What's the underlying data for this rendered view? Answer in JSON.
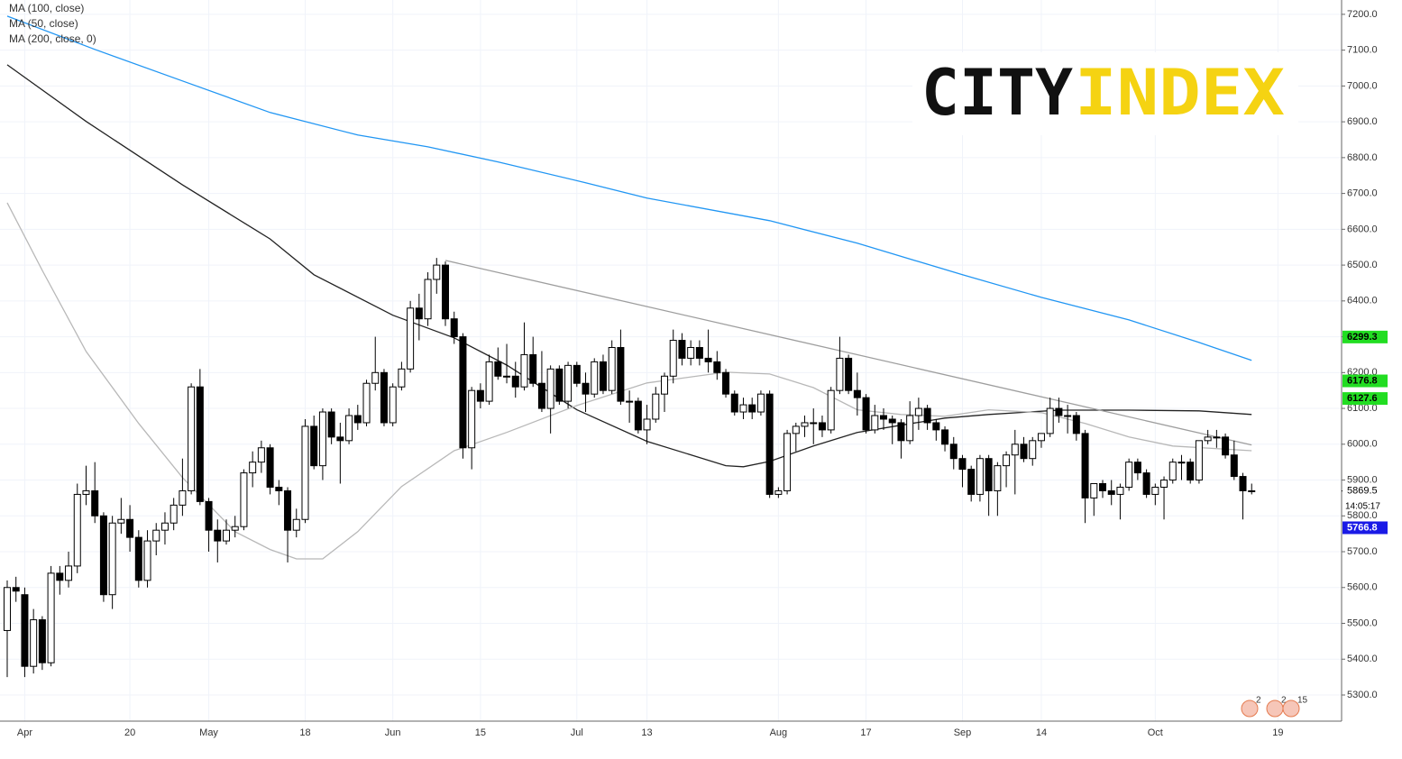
{
  "chart_data": {
    "type": "candlestick",
    "categories": [
      null,
      null,
      "Apr",
      null,
      null,
      null,
      null,
      null,
      null,
      null,
      null,
      null,
      null,
      null,
      "20",
      null,
      null,
      null,
      null,
      null,
      null,
      null,
      null,
      "May",
      null,
      null,
      null,
      null,
      null,
      null,
      null,
      null,
      null,
      null,
      "18",
      null,
      null,
      null,
      null,
      null,
      null,
      null,
      null,
      null,
      "Jun",
      null,
      null,
      null,
      null,
      null,
      null,
      null,
      null,
      null,
      "15",
      null,
      null,
      null,
      null,
      null,
      null,
      null,
      null,
      null,
      null,
      "Jul",
      null,
      null,
      null,
      null,
      null,
      null,
      null,
      "13",
      null,
      null,
      null,
      null,
      null,
      null,
      null,
      null,
      null,
      null,
      null,
      null,
      null,
      null,
      "Aug",
      null,
      null,
      null,
      null,
      null,
      null,
      null,
      null,
      null,
      "17",
      null,
      null,
      null,
      null,
      null,
      null,
      null,
      null,
      null,
      null,
      "Sep",
      null,
      null,
      null,
      null,
      null,
      null,
      null,
      null,
      "14",
      null,
      null,
      null,
      null,
      null,
      null,
      null,
      null,
      null,
      null,
      null,
      null,
      "Oct",
      null,
      null,
      null,
      null,
      null,
      null,
      null,
      null,
      null,
      null,
      null,
      null,
      null,
      "19",
      null,
      null,
      null,
      null,
      null,
      null
    ],
    "candles": [
      [
        5480,
        5620,
        5350,
        5600
      ],
      [
        5600,
        5630,
        5560,
        5590
      ],
      [
        5580,
        5600,
        5350,
        5380
      ],
      [
        5380,
        5540,
        5360,
        5510
      ],
      [
        5510,
        5520,
        5370,
        5390
      ],
      [
        5390,
        5660,
        5380,
        5640
      ],
      [
        5640,
        5660,
        5580,
        5620
      ],
      [
        5620,
        5700,
        5600,
        5660
      ],
      [
        5660,
        5890,
        5640,
        5860
      ],
      [
        5860,
        5940,
        5830,
        5870
      ],
      [
        5870,
        5950,
        5780,
        5800
      ],
      [
        5800,
        5810,
        5560,
        5580
      ],
      [
        5580,
        5800,
        5540,
        5780
      ],
      [
        5780,
        5850,
        5750,
        5790
      ],
      [
        5790,
        5830,
        5700,
        5740
      ],
      [
        5740,
        5760,
        5600,
        5620
      ],
      [
        5620,
        5760,
        5600,
        5730
      ],
      [
        5730,
        5780,
        5690,
        5760
      ],
      [
        5760,
        5810,
        5720,
        5780
      ],
      [
        5780,
        5850,
        5760,
        5830
      ],
      [
        5830,
        5960,
        5800,
        5870
      ],
      [
        5870,
        6170,
        5860,
        6160
      ],
      [
        6160,
        6210,
        5830,
        5840
      ],
      [
        5840,
        5850,
        5700,
        5760
      ],
      [
        5760,
        5790,
        5670,
        5730
      ],
      [
        5730,
        5790,
        5720,
        5760
      ],
      [
        5760,
        5800,
        5740,
        5770
      ],
      [
        5770,
        5930,
        5760,
        5920
      ],
      [
        5920,
        5980,
        5880,
        5950
      ],
      [
        5950,
        6010,
        5920,
        5990
      ],
      [
        5990,
        6000,
        5860,
        5880
      ],
      [
        5880,
        5900,
        5830,
        5870
      ],
      [
        5870,
        5880,
        5670,
        5760
      ],
      [
        5760,
        5820,
        5740,
        5790
      ],
      [
        5790,
        6070,
        5780,
        6050
      ],
      [
        6050,
        6080,
        5930,
        5940
      ],
      [
        5940,
        6100,
        5900,
        6090
      ],
      [
        6090,
        6100,
        6000,
        6020
      ],
      [
        6020,
        6060,
        5890,
        6010
      ],
      [
        6010,
        6100,
        6000,
        6080
      ],
      [
        6080,
        6110,
        6040,
        6060
      ],
      [
        6060,
        6180,
        6050,
        6170
      ],
      [
        6170,
        6300,
        6150,
        6200
      ],
      [
        6200,
        6210,
        6050,
        6060
      ],
      [
        6060,
        6170,
        6050,
        6160
      ],
      [
        6160,
        6230,
        6150,
        6210
      ],
      [
        6210,
        6400,
        6200,
        6380
      ],
      [
        6380,
        6420,
        6290,
        6350
      ],
      [
        6350,
        6480,
        6330,
        6460
      ],
      [
        6460,
        6520,
        6420,
        6500
      ],
      [
        6500,
        6510,
        6330,
        6350
      ],
      [
        6350,
        6370,
        6280,
        6300
      ],
      [
        6300,
        6310,
        5960,
        5990
      ],
      [
        5990,
        6160,
        5930,
        6150
      ],
      [
        6150,
        6170,
        6100,
        6120
      ],
      [
        6120,
        6250,
        6110,
        6230
      ],
      [
        6230,
        6270,
        6180,
        6190
      ],
      [
        6190,
        6280,
        6170,
        6190
      ],
      [
        6190,
        6230,
        6130,
        6160
      ],
      [
        6160,
        6340,
        6150,
        6250
      ],
      [
        6250,
        6300,
        6160,
        6170
      ],
      [
        6170,
        6260,
        6090,
        6100
      ],
      [
        6100,
        6220,
        6030,
        6210
      ],
      [
        6210,
        6220,
        6110,
        6120
      ],
      [
        6120,
        6230,
        6100,
        6220
      ],
      [
        6220,
        6230,
        6160,
        6170
      ],
      [
        6170,
        6200,
        6090,
        6140
      ],
      [
        6140,
        6240,
        6130,
        6230
      ],
      [
        6230,
        6250,
        6140,
        6150
      ],
      [
        6150,
        6290,
        6140,
        6270
      ],
      [
        6270,
        6320,
        6110,
        6120
      ],
      [
        6120,
        6150,
        6060,
        6120
      ],
      [
        6120,
        6130,
        6030,
        6040
      ],
      [
        6040,
        6110,
        6000,
        6070
      ],
      [
        6070,
        6160,
        6060,
        6140
      ],
      [
        6140,
        6200,
        6090,
        6190
      ],
      [
        6190,
        6320,
        6170,
        6290
      ],
      [
        6290,
        6310,
        6220,
        6240
      ],
      [
        6240,
        6290,
        6220,
        6270
      ],
      [
        6270,
        6290,
        6220,
        6240
      ],
      [
        6240,
        6320,
        6200,
        6230
      ],
      [
        6230,
        6260,
        6180,
        6200
      ],
      [
        6200,
        6210,
        6130,
        6140
      ],
      [
        6140,
        6150,
        6080,
        6090
      ],
      [
        6090,
        6130,
        6070,
        6110
      ],
      [
        6110,
        6130,
        6070,
        6090
      ],
      [
        6090,
        6150,
        6080,
        6140
      ],
      [
        6140,
        6150,
        5850,
        5860
      ],
      [
        5860,
        5880,
        5850,
        5870
      ],
      [
        5870,
        6040,
        5860,
        6030
      ],
      [
        6030,
        6060,
        5980,
        6050
      ],
      [
        6050,
        6080,
        6020,
        6060
      ],
      [
        6060,
        6100,
        6000,
        6060
      ],
      [
        6060,
        6080,
        6020,
        6040
      ],
      [
        6040,
        6160,
        6030,
        6150
      ],
      [
        6150,
        6300,
        6140,
        6240
      ],
      [
        6240,
        6250,
        6140,
        6150
      ],
      [
        6150,
        6200,
        6080,
        6130
      ],
      [
        6130,
        6140,
        6030,
        6040
      ],
      [
        6040,
        6110,
        6030,
        6080
      ],
      [
        6080,
        6100,
        6040,
        6070
      ],
      [
        6070,
        6080,
        6000,
        6060
      ],
      [
        6060,
        6070,
        5960,
        6010
      ],
      [
        6010,
        6120,
        6000,
        6080
      ],
      [
        6080,
        6130,
        6040,
        6100
      ],
      [
        6100,
        6110,
        6040,
        6060
      ],
      [
        6060,
        6070,
        6010,
        6040
      ],
      [
        6040,
        6050,
        5980,
        6000
      ],
      [
        6000,
        6020,
        5930,
        5960
      ],
      [
        5960,
        5970,
        5880,
        5930
      ],
      [
        5930,
        5940,
        5840,
        5860
      ],
      [
        5860,
        5970,
        5840,
        5960
      ],
      [
        5960,
        5970,
        5800,
        5870
      ],
      [
        5870,
        5950,
        5800,
        5940
      ],
      [
        5940,
        5980,
        5880,
        5970
      ],
      [
        5970,
        6040,
        5860,
        6000
      ],
      [
        6000,
        6020,
        5950,
        5960
      ],
      [
        5960,
        6020,
        5940,
        6010
      ],
      [
        6010,
        6030,
        5990,
        6030
      ],
      [
        6030,
        6130,
        6020,
        6100
      ],
      [
        6100,
        6130,
        6060,
        6080
      ],
      [
        6080,
        6110,
        6030,
        6080
      ],
      [
        6080,
        6090,
        6010,
        6030
      ],
      [
        6030,
        6040,
        5780,
        5850
      ],
      [
        5850,
        5890,
        5800,
        5890
      ],
      [
        5890,
        5900,
        5850,
        5870
      ],
      [
        5870,
        5900,
        5830,
        5860
      ],
      [
        5860,
        5890,
        5790,
        5880
      ],
      [
        5880,
        5960,
        5870,
        5950
      ],
      [
        5950,
        5960,
        5900,
        5920
      ],
      [
        5920,
        5930,
        5850,
        5860
      ],
      [
        5860,
        5890,
        5830,
        5880
      ],
      [
        5880,
        5910,
        5790,
        5900
      ],
      [
        5900,
        5960,
        5890,
        5950
      ],
      [
        5950,
        5970,
        5900,
        5950
      ],
      [
        5950,
        5960,
        5890,
        5900
      ],
      [
        5900,
        6010,
        5890,
        6010
      ],
      [
        6010,
        6040,
        6000,
        6020
      ],
      [
        6020,
        6040,
        5990,
        6020
      ],
      [
        6020,
        6030,
        5960,
        5970
      ],
      [
        5970,
        6010,
        5900,
        5910
      ],
      [
        5910,
        5920,
        5790,
        5870
      ],
      [
        5870,
        5890,
        5860,
        5869.5
      ],
      null,
      null,
      null,
      null,
      null,
      null,
      null,
      null,
      null
    ],
    "series": [
      {
        "name": "MA (100, close)",
        "color": "#222222",
        "x": [
          0,
          9,
          20,
          30,
          35,
          44,
          51,
          57,
          65,
          73,
          82,
          84,
          87,
          92,
          97,
          102,
          107,
          112,
          120,
          128,
          136,
          142
        ],
        "values": [
          7059,
          6901,
          6724,
          6573,
          6473,
          6360,
          6297,
          6221,
          6096,
          6008,
          5940,
          5937,
          5952,
          5995,
          6033,
          6053,
          6073,
          6083,
          6095,
          6095,
          6093,
          6083
        ]
      },
      {
        "name": "MA (50, close)",
        "color": "#b8b8b8",
        "x": [
          0,
          4,
          9,
          15,
          20,
          26,
          30,
          33,
          36,
          40,
          45,
          51,
          57,
          65,
          73,
          82,
          87,
          92,
          97,
          102,
          107,
          112,
          118,
          123,
          128,
          133,
          142
        ],
        "values": [
          6674,
          6485,
          6259,
          6058,
          5907,
          5756,
          5706,
          5680,
          5680,
          5756,
          5882,
          5982,
          6033,
          6108,
          6171,
          6201,
          6196,
          6158,
          6096,
          6083,
          6078,
          6096,
          6088,
          6058,
          6020,
          5995,
          5982
        ]
      },
      {
        "name": "MA (200, close, 0)",
        "color": "#2196f3",
        "x": [
          0,
          10,
          20,
          30,
          40,
          48,
          56,
          66,
          73,
          87,
          97,
          109,
          118,
          128,
          136,
          142
        ],
        "values": [
          7195,
          7102,
          7014,
          6926,
          6863,
          6830,
          6788,
          6730,
          6687,
          6624,
          6561,
          6473,
          6410,
          6347,
          6284,
          6234
        ]
      }
    ],
    "trendline": {
      "color": "#9e9e9e",
      "x": [
        50,
        142
      ],
      "values": [
        6513,
        5998
      ]
    },
    "levels": [
      {
        "value": 6299.3,
        "start": 95,
        "color": "#22dd22"
      },
      {
        "value": 6176.8,
        "start": 104,
        "color": "#22dd22"
      },
      {
        "value": 6127.6,
        "start": 119,
        "color": "#22dd22"
      },
      {
        "value": 5766.8,
        "start": 112,
        "color": "#1a1ae6"
      }
    ],
    "last_value": 5869.5,
    "countdown": "14:05:17",
    "ylim": [
      5227,
      7240
    ],
    "yticks": [
      {
        "value": 5300,
        "label": "5300.0"
      },
      {
        "value": 5400,
        "label": "5400.0"
      },
      {
        "value": 5500,
        "label": "5500.0"
      },
      {
        "value": 5600,
        "label": "5600.0"
      },
      {
        "value": 5700,
        "label": "5700.0"
      },
      {
        "value": 5800,
        "label": "5800.0"
      },
      {
        "value": 5900,
        "label": "5900.0"
      },
      {
        "value": 6000,
        "label": "6000.0"
      },
      {
        "value": 6100,
        "label": "6100.0"
      },
      {
        "value": 6200,
        "label": "6200.0"
      },
      {
        "value": 6300,
        "label": "6300.0"
      },
      {
        "value": 6400,
        "label": "6400.0"
      },
      {
        "value": 6500,
        "label": "6500.0"
      },
      {
        "value": 6600,
        "label": "6600.0"
      },
      {
        "value": 6700,
        "label": "6700.0"
      },
      {
        "value": 6800,
        "label": "6800.0"
      },
      {
        "value": 6900,
        "label": "6900.0"
      },
      {
        "value": 7000,
        "label": "7000.0"
      },
      {
        "value": 7100,
        "label": "7100.0"
      },
      {
        "value": 7200,
        "label": "7200.0"
      }
    ],
    "grid": true
  },
  "logo": {
    "left": "CITY",
    "right": "INDEX"
  },
  "events": [
    2,
    2,
    15
  ]
}
